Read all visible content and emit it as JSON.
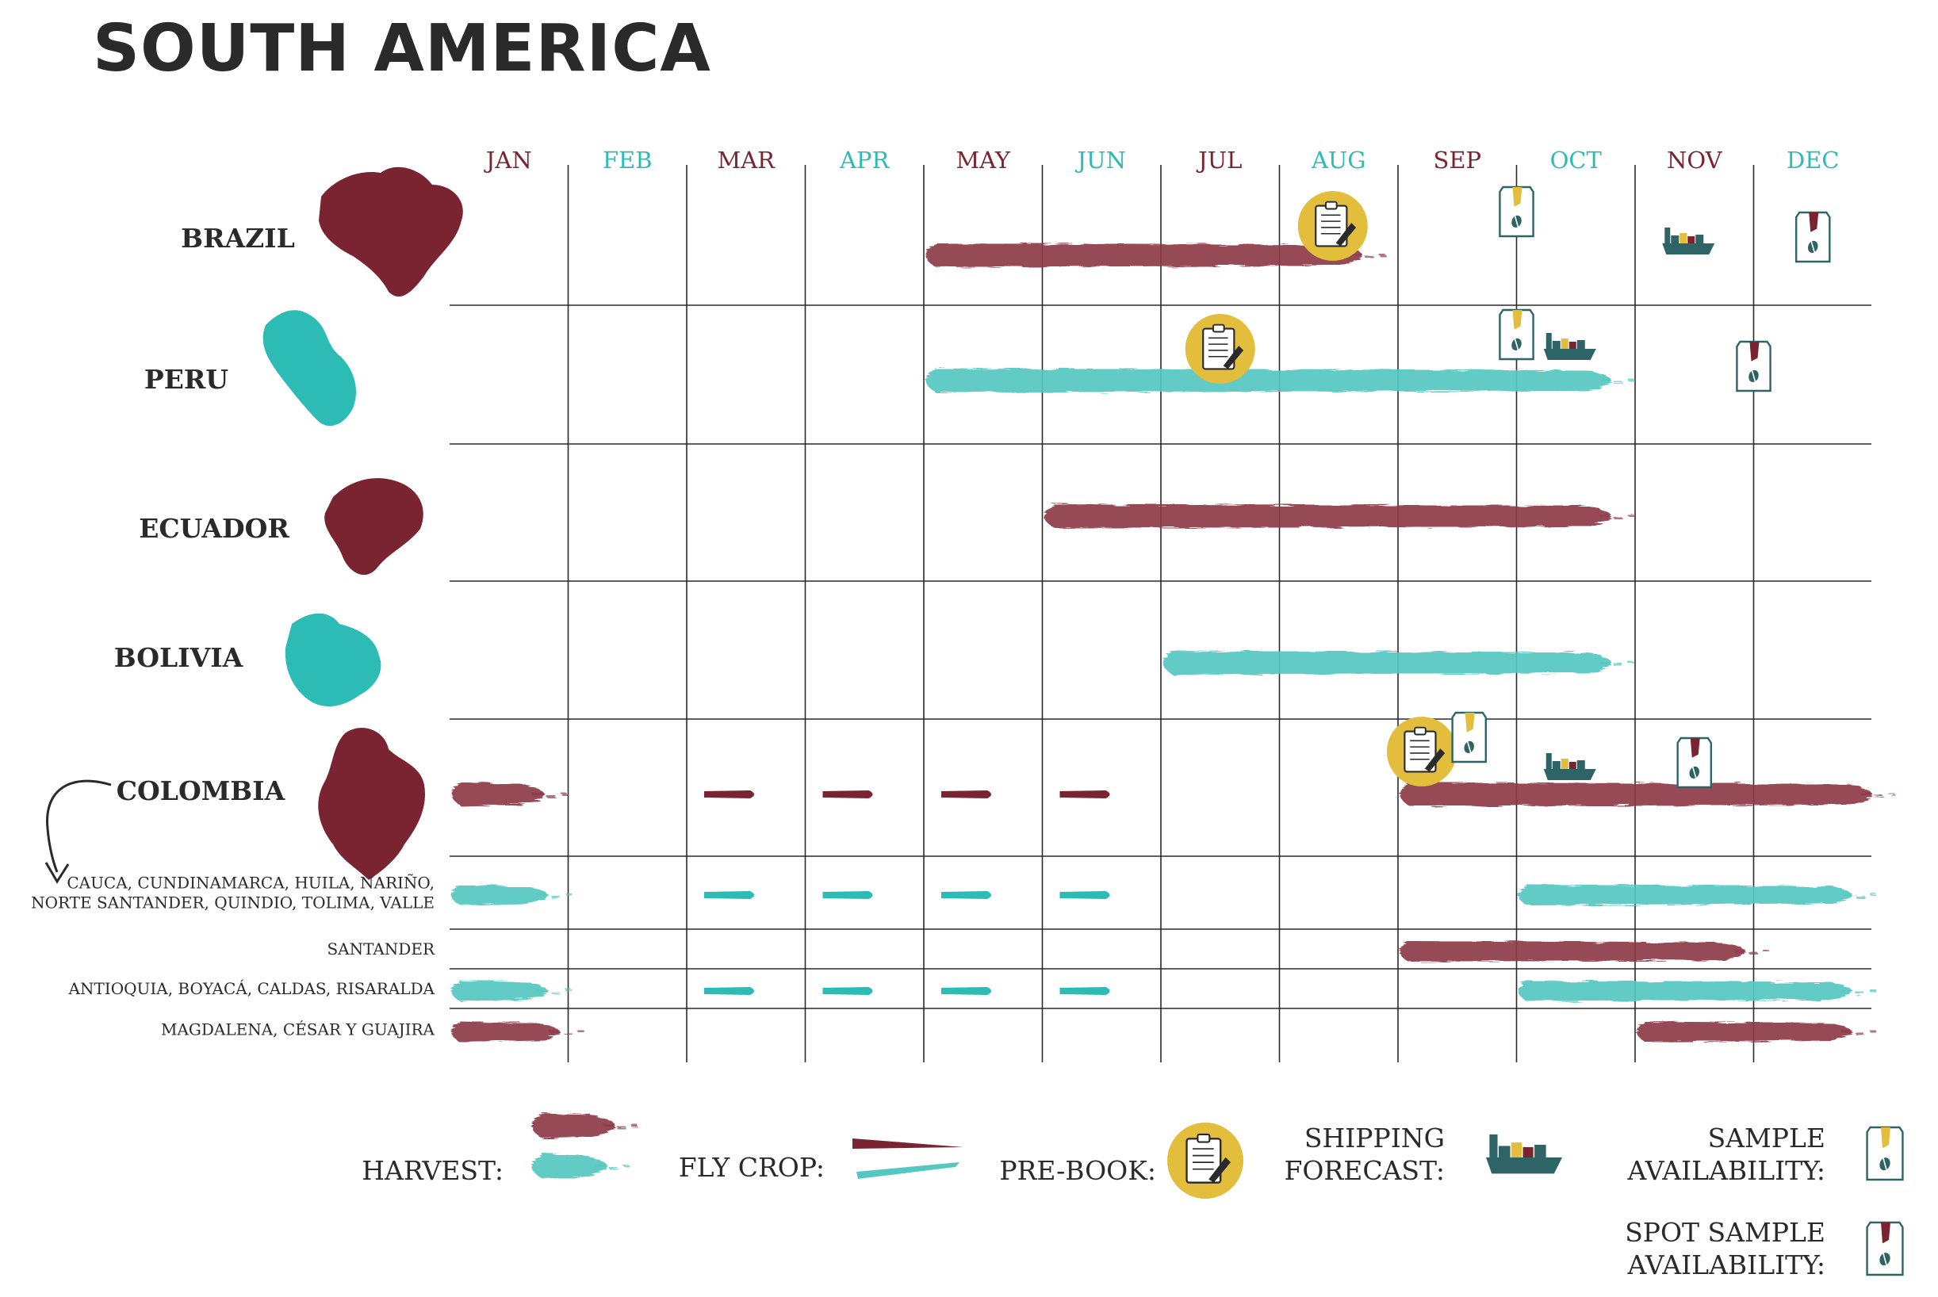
{
  "title": "SOUTH AMERICA",
  "colors": {
    "maroon": "#7a2431",
    "maroon_light": "#8c3a47",
    "teal": "#2dbbb5",
    "teal_light": "#55c7c1",
    "gold": "#e3bd3c",
    "ship": "#2f6466",
    "bag_yellow": "#e3bd3c",
    "grid": "#2a2a2a",
    "text": "#2a2a2a"
  },
  "chart_data": {
    "type": "table",
    "months": [
      "JAN",
      "FEB",
      "MAR",
      "APR",
      "MAY",
      "JUN",
      "JUL",
      "AUG",
      "SEP",
      "OCT",
      "NOV",
      "DEC"
    ],
    "rows": [
      {
        "name": "BRAZIL",
        "sub": false,
        "map_color": "maroon",
        "harvest": [
          {
            "start": 5.0,
            "end": 8.9,
            "color": "maroon"
          }
        ],
        "fly_crop": [],
        "prebook": [
          8.45
        ],
        "sample": [
          10.0
        ],
        "spot_sample": [
          12.5
        ],
        "shipping": [
          11.45
        ]
      },
      {
        "name": "PERU",
        "sub": false,
        "map_color": "teal",
        "harvest": [
          {
            "start": 5.0,
            "end": 11.0,
            "color": "teal"
          }
        ],
        "fly_crop": [],
        "prebook": [
          7.5
        ],
        "sample": [
          10.0
        ],
        "spot_sample": [
          12.0
        ],
        "shipping": [
          10.45
        ]
      },
      {
        "name": "ECUADOR",
        "sub": false,
        "map_color": "maroon",
        "harvest": [
          {
            "start": 6.0,
            "end": 11.0,
            "color": "maroon"
          }
        ],
        "fly_crop": [],
        "prebook": [],
        "sample": [],
        "spot_sample": [],
        "shipping": []
      },
      {
        "name": "BOLIVIA",
        "sub": false,
        "map_color": "teal",
        "harvest": [
          {
            "start": 7.0,
            "end": 11.0,
            "color": "teal"
          }
        ],
        "fly_crop": [],
        "prebook": [],
        "sample": [],
        "spot_sample": [],
        "shipping": []
      },
      {
        "name": "COLOMBIA",
        "sub": false,
        "map_color": "maroon",
        "harvest": [
          {
            "start": 1.0,
            "end": 2.0,
            "color": "maroon"
          },
          {
            "start": 9.0,
            "end": 13.2,
            "color": "maroon"
          }
        ],
        "fly_crop": [
          {
            "start": 3.0,
            "end": 7.0,
            "color": "maroon"
          }
        ],
        "prebook": [
          9.2
        ],
        "sample": [
          9.6
        ],
        "spot_sample": [
          11.5
        ],
        "shipping": [
          10.45
        ]
      },
      {
        "name": "CAUCA, CUNDINAMARCA, HUILA, NARIÑO,\nNORTE SANTANDER, QUINDIO, TOLIMA, VALLE",
        "sub": true,
        "harvest": [
          {
            "start": 1.0,
            "end": 2.0,
            "color": "teal"
          },
          {
            "start": 10.0,
            "end": 13.0,
            "color": "teal"
          }
        ],
        "fly_crop": [
          {
            "start": 3.0,
            "end": 7.0,
            "color": "teal"
          }
        ],
        "prebook": [],
        "sample": [],
        "spot_sample": [],
        "shipping": []
      },
      {
        "name": "SANTANDER",
        "sub": true,
        "harvest": [
          {
            "start": 9.0,
            "end": 12.1,
            "color": "maroon"
          }
        ],
        "fly_crop": [],
        "prebook": [],
        "sample": [],
        "spot_sample": [],
        "shipping": []
      },
      {
        "name": "ANTIOQUIA, BOYACÁ, CALDAS, RISARALDA",
        "sub": true,
        "harvest": [
          {
            "start": 1.0,
            "end": 2.0,
            "color": "teal"
          },
          {
            "start": 10.0,
            "end": 13.0,
            "color": "teal"
          }
        ],
        "fly_crop": [
          {
            "start": 3.0,
            "end": 7.0,
            "color": "teal"
          }
        ],
        "prebook": [],
        "sample": [],
        "spot_sample": [],
        "shipping": []
      },
      {
        "name": "MAGDALENA, CÉSAR Y GUAJIRA",
        "sub": true,
        "harvest": [
          {
            "start": 1.0,
            "end": 2.1,
            "color": "maroon"
          },
          {
            "start": 11.0,
            "end": 13.0,
            "color": "maroon"
          }
        ],
        "fly_crop": [],
        "prebook": [],
        "sample": [],
        "spot_sample": [],
        "shipping": []
      }
    ]
  },
  "legend": {
    "harvest": "HARVEST:",
    "fly_crop": "FLY CROP:",
    "prebook": "PRE-BOOK:",
    "shipping_line1": "SHIPPING",
    "shipping_line2": "FORECAST:",
    "sample_line1": "SAMPLE",
    "sample_line2": "AVAILABILITY:",
    "spot_line1": "SPOT SAMPLE",
    "spot_line2": "AVAILABILITY:"
  },
  "icons": {
    "prebook": "clipboard-pen-icon",
    "shipping": "cargo-ship-icon",
    "sample": "coffee-bag-icon",
    "spot_sample": "coffee-bag-dark-tab-icon",
    "colombia_arrow": "curved-arrow-icon"
  }
}
